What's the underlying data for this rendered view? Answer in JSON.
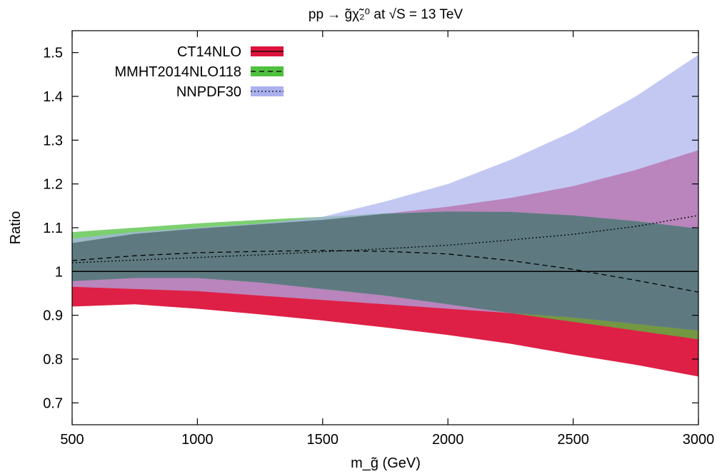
{
  "chart_data": {
    "type": "area",
    "title": "pp → g̃χ̃₂⁰ at √S = 13 TeV",
    "xlabel": "m_g̃ (GeV)",
    "ylabel": "Ratio",
    "xlim": [
      500,
      3000
    ],
    "ylim": [
      0.65,
      1.55
    ],
    "x_ticks": [
      500,
      1000,
      1500,
      2000,
      2500,
      3000
    ],
    "y_ticks": [
      0.7,
      0.8,
      0.9,
      1,
      1.1,
      1.2,
      1.3,
      1.4,
      1.5
    ],
    "y_tick_labels": [
      "0.7",
      "0.8",
      "0.9",
      "1",
      "1.1",
      "1.2",
      "1.3",
      "1.4",
      "1.5"
    ],
    "x": [
      500,
      750,
      1000,
      1250,
      1500,
      1750,
      2000,
      2250,
      2500,
      2750,
      3000
    ],
    "grid": false,
    "legend_position": "top-left",
    "series": [
      {
        "name": "CT14NLO",
        "line_style": "solid",
        "color": "#dc143c",
        "central": [
          1.0,
          1.0,
          1.0,
          1.0,
          1.0,
          1.0,
          1.0,
          1.0,
          1.0,
          1.0,
          1.0
        ],
        "upper": [
          1.065,
          1.086,
          1.098,
          1.108,
          1.118,
          1.132,
          1.148,
          1.168,
          1.195,
          1.232,
          1.277
        ],
        "lower": [
          0.92,
          0.925,
          0.915,
          0.902,
          0.888,
          0.872,
          0.855,
          0.835,
          0.81,
          0.787,
          0.76
        ]
      },
      {
        "name": "MMHT2014NLO118",
        "line_style": "dashed",
        "color": "#50c040",
        "central": [
          1.025,
          1.036,
          1.043,
          1.046,
          1.048,
          1.046,
          1.04,
          1.025,
          1.005,
          0.98,
          0.953
        ]
      },
      {
        "name": "NNPDF30",
        "line_style": "dotted",
        "color": "#aab0ee",
        "central": [
          1.02,
          1.026,
          1.032,
          1.038,
          1.045,
          1.052,
          1.06,
          1.072,
          1.085,
          1.103,
          1.128
        ]
      }
    ]
  }
}
